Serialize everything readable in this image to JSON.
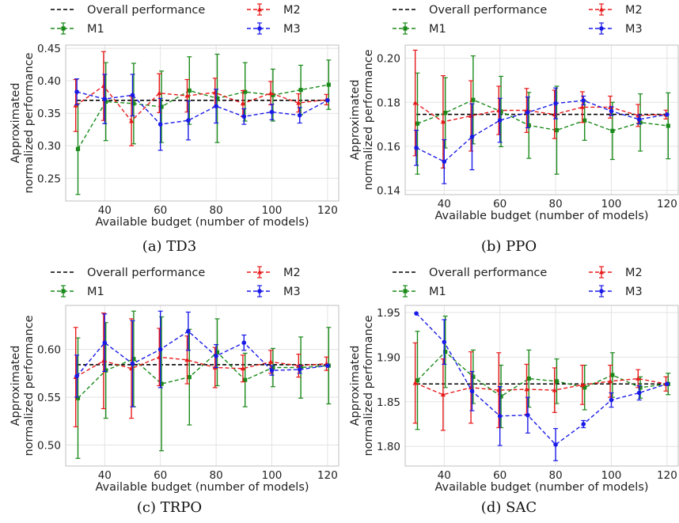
{
  "x": [
    30,
    40,
    50,
    60,
    70,
    80,
    90,
    100,
    110,
    120
  ],
  "xlabel": "Available budget (number of models)",
  "ylabel_lines": [
    "Approximated",
    "normalized performance"
  ],
  "legend": [
    "Overall performance",
    "M2",
    "M1",
    "M3"
  ],
  "series_colors": {
    "Overall performance": "#000000",
    "M1": "#1a8a1a",
    "M2": "#e81a1a",
    "M3": "#1a1ae8"
  },
  "chart_data": [
    {
      "type": "line",
      "caption": "(a) TD3",
      "xlim": [
        26,
        124
      ],
      "ylim": [
        0.215,
        0.455
      ],
      "xticks": [
        40,
        60,
        80,
        100,
        120
      ],
      "yticks": [
        0.25,
        0.3,
        0.35,
        0.4,
        0.45
      ],
      "ytick_labels": [
        "0.25",
        "0.30",
        "0.35",
        "0.40",
        "0.45"
      ],
      "overall": 0.37,
      "series": [
        {
          "name": "M1",
          "values": [
            0.295,
            0.368,
            0.365,
            0.36,
            0.385,
            0.373,
            0.383,
            0.378,
            0.386,
            0.394
          ],
          "err": [
            0.07,
            0.06,
            0.062,
            0.055,
            0.052,
            0.068,
            0.045,
            0.04,
            0.038,
            0.038
          ]
        },
        {
          "name": "M2",
          "values": [
            0.362,
            0.392,
            0.338,
            0.381,
            0.377,
            0.382,
            0.365,
            0.381,
            0.366,
            0.371
          ],
          "err": [
            0.04,
            0.053,
            0.038,
            0.03,
            0.025,
            0.022,
            0.02,
            0.018,
            0.014,
            0.008
          ]
        },
        {
          "name": "M3",
          "values": [
            0.383,
            0.372,
            0.378,
            0.333,
            0.339,
            0.361,
            0.345,
            0.352,
            0.347,
            0.37
          ],
          "err": [
            0.02,
            0.038,
            0.032,
            0.04,
            0.03,
            0.026,
            0.012,
            0.012,
            0.012,
            0.0
          ]
        }
      ]
    },
    {
      "type": "line",
      "caption": "(b) PPO",
      "xlim": [
        26,
        124
      ],
      "ylim": [
        0.138,
        0.206
      ],
      "xticks": [
        40,
        60,
        80,
        100,
        120
      ],
      "yticks": [
        0.14,
        0.16,
        0.18,
        0.2
      ],
      "ytick_labels": [
        "0.14",
        "0.16",
        "0.18",
        "0.20"
      ],
      "overall": 0.1745,
      "series": [
        {
          "name": "M1",
          "values": [
            0.1703,
            0.1752,
            0.1811,
            0.1758,
            0.1695,
            0.1673,
            0.1717,
            0.167,
            0.1708,
            0.1693
          ],
          "err": [
            0.023,
            0.016,
            0.02,
            0.016,
            0.015,
            0.02,
            0.009,
            0.013,
            0.013,
            0.015
          ]
        },
        {
          "name": "M2",
          "values": [
            0.1797,
            0.1711,
            0.1738,
            0.1763,
            0.1763,
            0.1745,
            0.1778,
            0.1778,
            0.174,
            0.1744
          ],
          "err": [
            0.024,
            0.021,
            0.016,
            0.011,
            0.01,
            0.011,
            0.007,
            0.005,
            0.005,
            0.002
          ]
        },
        {
          "name": "M3",
          "values": [
            0.1593,
            0.153,
            0.1643,
            0.1718,
            0.1754,
            0.1795,
            0.1808,
            0.176,
            0.1722,
            0.1744
          ],
          "err": [
            0.008,
            0.01,
            0.015,
            0.01,
            0.007,
            0.007,
            0.002,
            0.002,
            0.002,
            0.0
          ]
        }
      ]
    },
    {
      "type": "line",
      "caption": "(c) TRPO",
      "xlim": [
        26,
        124
      ],
      "ylim": [
        0.478,
        0.646
      ],
      "xticks": [
        40,
        60,
        80,
        100,
        120
      ],
      "yticks": [
        0.5,
        0.55,
        0.6
      ],
      "ytick_labels": [
        "0.50",
        "0.55",
        "0.60"
      ],
      "overall": 0.584,
      "series": [
        {
          "name": "M1",
          "values": [
            0.549,
            0.578,
            0.59,
            0.564,
            0.571,
            0.597,
            0.568,
            0.581,
            0.581,
            0.583
          ],
          "err": [
            0.063,
            0.05,
            0.05,
            0.07,
            0.05,
            0.035,
            0.028,
            0.02,
            0.032,
            0.04
          ]
        },
        {
          "name": "M2",
          "values": [
            0.571,
            0.588,
            0.58,
            0.592,
            0.589,
            0.581,
            0.58,
            0.587,
            0.583,
            0.585
          ],
          "err": [
            0.052,
            0.05,
            0.052,
            0.03,
            0.025,
            0.021,
            0.014,
            0.012,
            0.012,
            0.007
          ]
        },
        {
          "name": "M3",
          "values": [
            0.572,
            0.607,
            0.585,
            0.6,
            0.619,
            0.593,
            0.607,
            0.578,
            0.579,
            0.583
          ],
          "err": [
            0.022,
            0.03,
            0.045,
            0.04,
            0.02,
            0.012,
            0.008,
            0.005,
            0.004,
            0.0
          ]
        }
      ]
    },
    {
      "type": "line",
      "caption": "(d) SAC",
      "xlim": [
        26,
        124
      ],
      "ylim": [
        1.778,
        1.958
      ],
      "xticks": [
        40,
        60,
        80,
        100,
        120
      ],
      "yticks": [
        1.8,
        1.85,
        1.9,
        1.95
      ],
      "ytick_labels": [
        "1.80",
        "1.85",
        "1.90",
        "1.95"
      ],
      "overall": 1.87,
      "series": [
        {
          "name": "M1",
          "values": [
            1.874,
            1.906,
            1.878,
            1.856,
            1.876,
            1.873,
            1.866,
            1.88,
            1.866,
            1.87
          ],
          "err": [
            0.055,
            0.04,
            0.03,
            0.035,
            0.032,
            0.025,
            0.025,
            0.025,
            0.012,
            0.012
          ]
        },
        {
          "name": "M2",
          "values": [
            1.871,
            1.858,
            1.866,
            1.863,
            1.864,
            1.863,
            1.869,
            1.873,
            1.876,
            1.87
          ],
          "err": [
            0.045,
            0.04,
            0.04,
            0.042,
            0.028,
            0.025,
            0.022,
            0.018,
            0.01,
            0.008
          ]
        },
        {
          "name": "M3",
          "values": [
            1.949,
            1.917,
            1.862,
            1.834,
            1.835,
            1.802,
            1.825,
            1.852,
            1.86,
            1.87
          ],
          "err": [
            0.0,
            0.025,
            0.022,
            0.033,
            0.02,
            0.018,
            0.004,
            0.008,
            0.008,
            0.0
          ]
        }
      ]
    }
  ]
}
